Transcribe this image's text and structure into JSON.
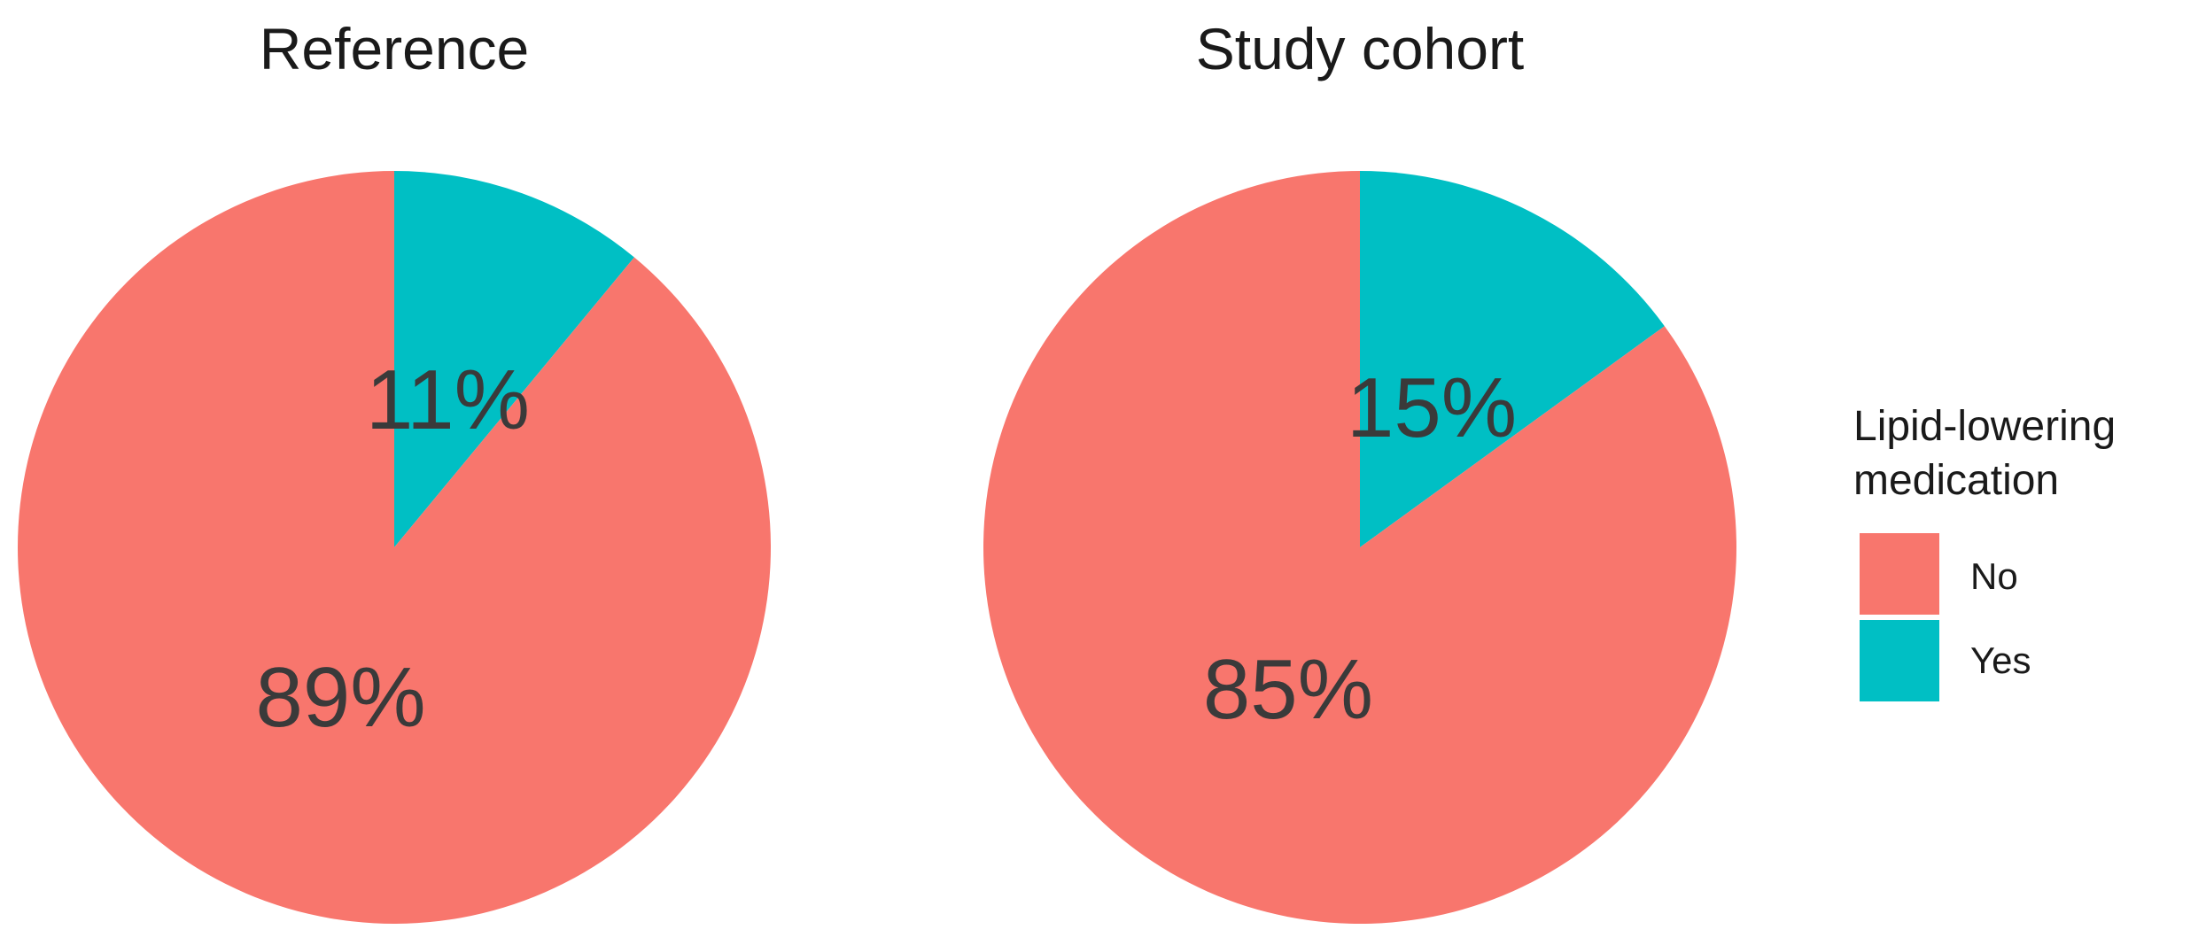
{
  "legend": {
    "title_line1": "Lipid-lowering",
    "title_line2": "medication",
    "placement": "right",
    "items": [
      {
        "label": "No",
        "color": "#F8766D"
      },
      {
        "label": "Yes",
        "color": "#00BFC4"
      }
    ]
  },
  "chart_data": [
    {
      "type": "pie",
      "title": "Reference",
      "categories": [
        "No",
        "Yes"
      ],
      "values": [
        89,
        11
      ],
      "labels": [
        "89%",
        "11%"
      ],
      "colors": [
        "#F8766D",
        "#00BFC4"
      ]
    },
    {
      "type": "pie",
      "title": "Study cohort",
      "categories": [
        "No",
        "Yes"
      ],
      "values": [
        85,
        15
      ],
      "labels": [
        "85%",
        "15%"
      ],
      "colors": [
        "#F8766D",
        "#00BFC4"
      ]
    }
  ]
}
